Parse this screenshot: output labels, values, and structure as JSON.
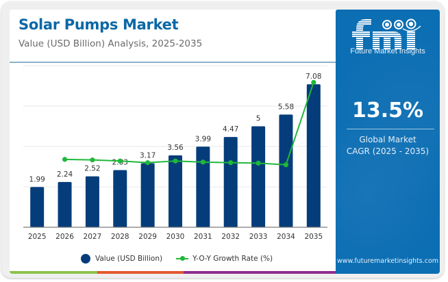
{
  "header": {
    "title": "Solar Pumps Market",
    "subtitle": "Value (USD Billion) Analysis, 2025-2035"
  },
  "side_panel": {
    "logo_text": "fmi",
    "logo_caption": "Future Market Insights",
    "cagr_value": "13.5%",
    "cagr_label_line1": "Global Market",
    "cagr_label_line2": "CAGR (2025 - 2035)",
    "website": "www.futuremarketinsights.com",
    "background_color": "#0c6eb3"
  },
  "legend": {
    "bar_label": "Value (USD Billion)",
    "line_label": "Y-O-Y Growth Rate (%)"
  },
  "colors": {
    "bar": "#053d7a",
    "line": "#1fb83a",
    "title": "#0b67a6",
    "stripe": [
      "#8bc34a",
      "#e4572e",
      "#8e2c8f"
    ]
  },
  "chart_data": {
    "type": "bar",
    "title": "Solar Pumps Market",
    "subtitle": "Value (USD Billion) Analysis, 2025-2035",
    "xlabel": "",
    "ylabel": "",
    "categories": [
      "2025",
      "2026",
      "2027",
      "2028",
      "2029",
      "2030",
      "2031",
      "2032",
      "2033",
      "2034",
      "2035"
    ],
    "ylim": [
      0,
      8
    ],
    "grid": true,
    "gridline_values": [
      2,
      4,
      6,
      8
    ],
    "legend_position": "bottom",
    "series": [
      {
        "name": "Value (USD Billion)",
        "type": "bar",
        "values": [
          1.99,
          2.24,
          2.52,
          2.83,
          3.17,
          3.56,
          3.99,
          4.47,
          5,
          5.58,
          7.08
        ],
        "data_labels": [
          "1.99",
          "2.24",
          "2.52",
          "2.83",
          "3.17",
          "3.56",
          "3.99",
          "4.47",
          "5",
          "5.58",
          "7.08"
        ]
      },
      {
        "name": "Y-O-Y Growth Rate (%)",
        "type": "line",
        "secondary_axis": true,
        "secondary_ylim": [
          0,
          30
        ],
        "values": [
          null,
          12.6,
          12.5,
          12.3,
          12.0,
          12.3,
          12.1,
          12.0,
          11.9,
          11.6,
          26.9
        ]
      }
    ]
  }
}
